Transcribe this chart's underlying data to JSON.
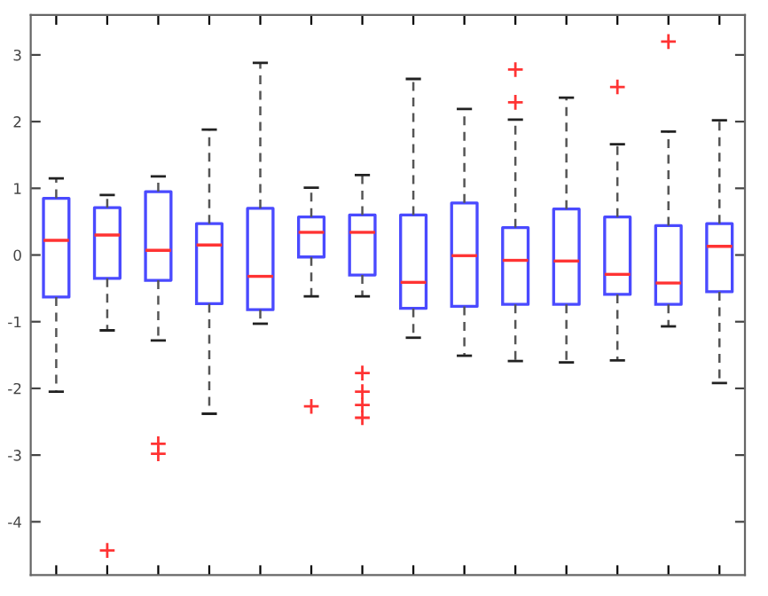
{
  "chart_data": {
    "type": "box",
    "categories": [
      null,
      null,
      null,
      null,
      null,
      null,
      null,
      null,
      null,
      null,
      null,
      null,
      null,
      null
    ],
    "boxes": [
      {
        "low": -2.05,
        "q1": -0.63,
        "median": 0.22,
        "q3": 0.85,
        "high": 1.15
      },
      {
        "low": -1.13,
        "q1": -0.35,
        "median": 0.3,
        "q3": 0.71,
        "high": 0.9,
        "outliers": [
          -4.43
        ]
      },
      {
        "low": -1.28,
        "q1": -0.38,
        "median": 0.07,
        "q3": 0.95,
        "high": 1.18,
        "outliers": [
          -2.83,
          -2.98
        ]
      },
      {
        "low": -2.38,
        "q1": -0.73,
        "median": 0.15,
        "q3": 0.47,
        "high": 1.88
      },
      {
        "low": -1.03,
        "q1": -0.82,
        "median": -0.32,
        "q3": 0.7,
        "high": 2.88
      },
      {
        "low": -0.62,
        "q1": -0.03,
        "median": 0.34,
        "q3": 0.57,
        "high": 1.01,
        "outliers": [
          -2.27
        ]
      },
      {
        "low": -0.62,
        "q1": -0.3,
        "median": 0.34,
        "q3": 0.6,
        "high": 1.2,
        "outliers": [
          -1.77,
          -2.05,
          -2.25,
          -2.44
        ]
      },
      {
        "low": -1.24,
        "q1": -0.8,
        "median": -0.41,
        "q3": 0.6,
        "high": 2.64
      },
      {
        "low": -1.51,
        "q1": -0.77,
        "median": -0.01,
        "q3": 0.78,
        "high": 2.19
      },
      {
        "low": -1.59,
        "q1": -0.74,
        "median": -0.08,
        "q3": 0.41,
        "high": 2.03,
        "outliers": [
          2.78,
          2.29
        ]
      },
      {
        "low": -1.61,
        "q1": -0.74,
        "median": -0.09,
        "q3": 0.69,
        "high": 2.36
      },
      {
        "low": -1.58,
        "q1": -0.59,
        "median": -0.29,
        "q3": 0.57,
        "high": 1.66,
        "outliers": [
          2.52
        ]
      },
      {
        "low": -1.07,
        "q1": -0.74,
        "median": -0.42,
        "q3": 0.44,
        "high": 1.85,
        "outliers": [
          3.2
        ]
      },
      {
        "low": -1.92,
        "q1": -0.55,
        "median": 0.13,
        "q3": 0.47,
        "high": 2.02
      }
    ],
    "color": "#4a4aff",
    "ylim": [
      -4.8,
      3.6
    ],
    "yticks": [
      -4,
      -3,
      -2,
      -1,
      0,
      1,
      2,
      3
    ],
    "tick_labels": "y",
    "grid": false
  }
}
